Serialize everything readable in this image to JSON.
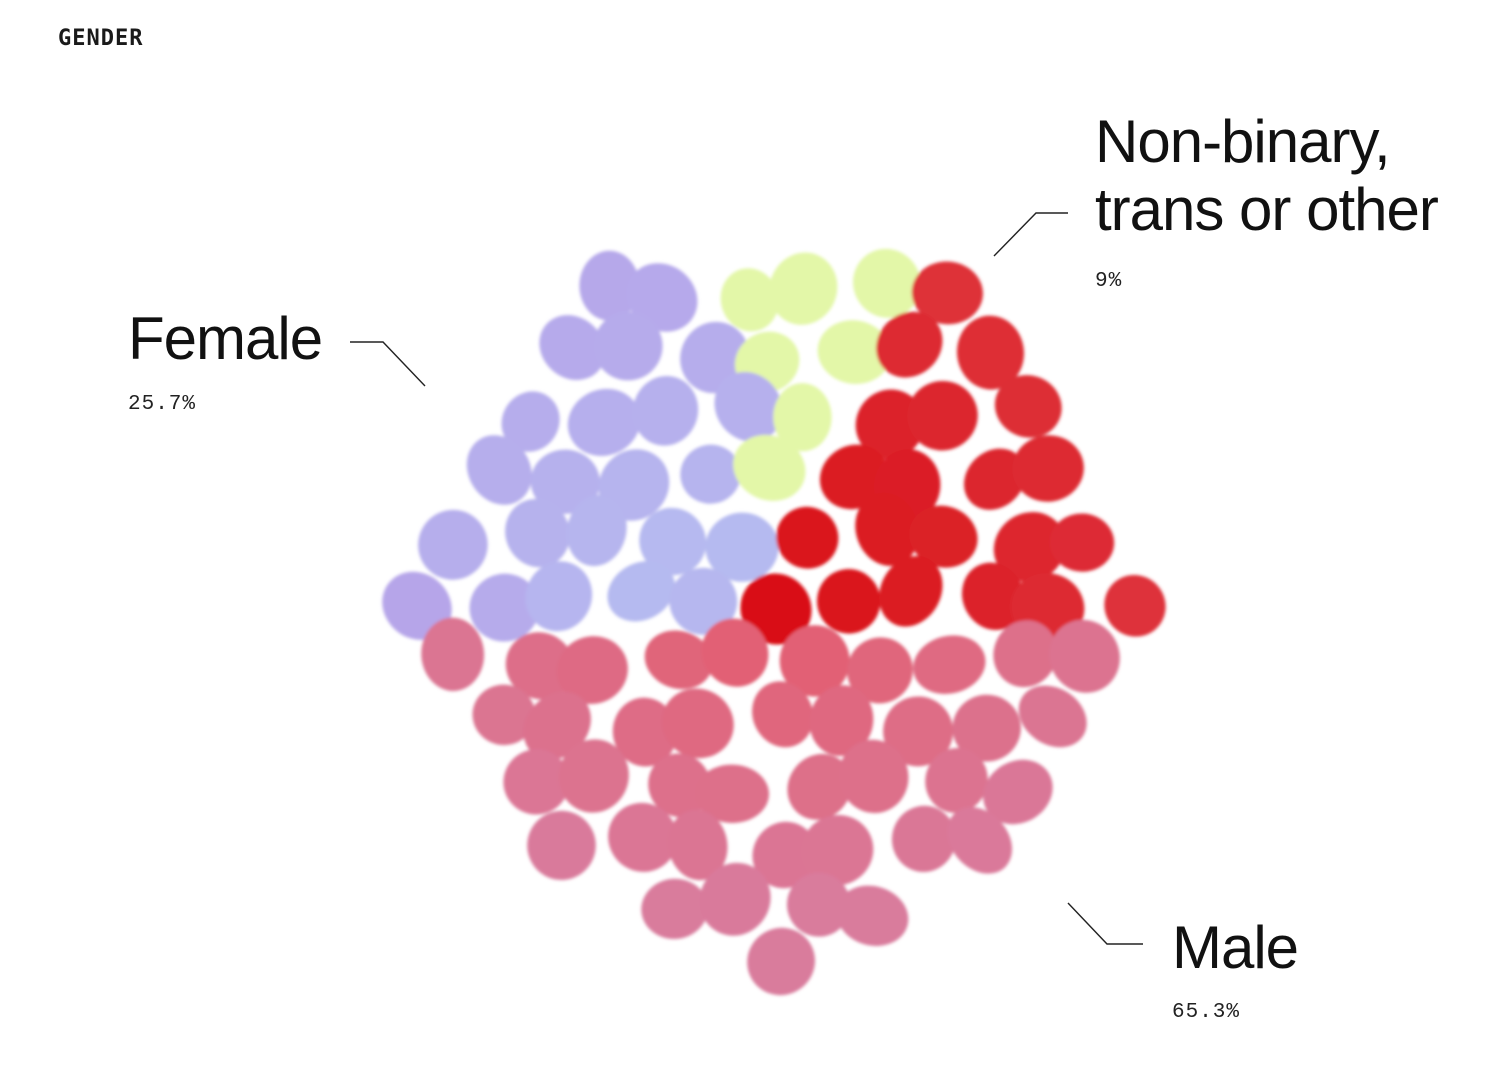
{
  "section_title": "GENDER",
  "colors": {
    "female": "#b79be6",
    "female_light": "#b5c3f3",
    "nonbinary": "#e3f7a8",
    "male_dark": "#d90f12",
    "male_mid": "#e45a6a",
    "male_light": "#d97b9c"
  },
  "chart_data": {
    "type": "pie",
    "style": "dot-cluster",
    "categories": [
      "Female",
      "Non-binary, trans or other",
      "Male"
    ],
    "values": [
      25.7,
      9,
      65.3
    ],
    "labels": {
      "female": {
        "name": "Female",
        "value": "25.7%"
      },
      "nonbinary": {
        "name_line1": "Non-binary,",
        "name_line2": "trans or other",
        "value": "9%"
      },
      "male": {
        "name": "Male",
        "value": "65.3%"
      }
    }
  }
}
